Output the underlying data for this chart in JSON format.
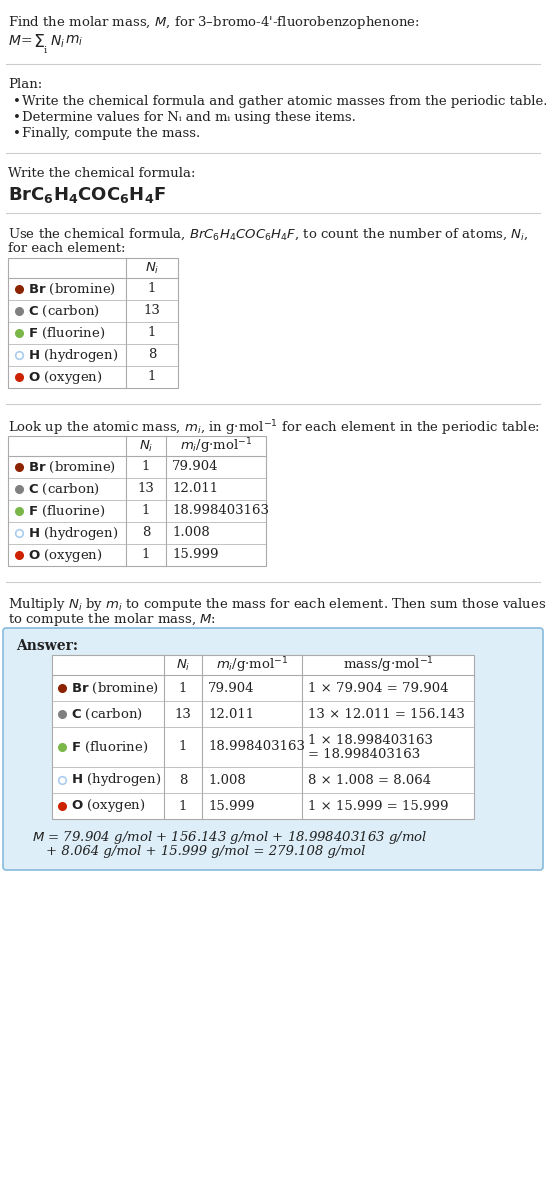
{
  "title_line": "Find the molar mass, M, for 3–bromo-4'-fluorobenzophenone:",
  "plan_header": "Plan:",
  "plan_bullets": [
    "Write the chemical formula and gather atomic masses from the periodic table.",
    "Determine values for Nᵢ and mᵢ using these items.",
    "Finally, compute the mass."
  ],
  "formula_header": "Write the chemical formula:",
  "elements": [
    {
      "symbol": "Br",
      "name": "bromine",
      "color": "#8b2200",
      "filled": true,
      "Ni": 1,
      "mi": "79.904",
      "mass_eq": "1 × 79.904 = 79.904"
    },
    {
      "symbol": "C",
      "name": "carbon",
      "color": "#808080",
      "filled": true,
      "Ni": 13,
      "mi": "12.011",
      "mass_eq": "13 × 12.011 = 156.143"
    },
    {
      "symbol": "F",
      "name": "fluorine",
      "color": "#7ab648",
      "filled": true,
      "Ni": 1,
      "mi": "18.998403163",
      "mass_eq": "1 × 18.998403163\n= 18.998403163"
    },
    {
      "symbol": "H",
      "name": "hydrogen",
      "color": "#aaccee",
      "filled": false,
      "Ni": 8,
      "mi": "1.008",
      "mass_eq": "8 × 1.008 = 8.064"
    },
    {
      "symbol": "O",
      "name": "oxygen",
      "color": "#cc2200",
      "filled": true,
      "Ni": 1,
      "mi": "15.999",
      "mass_eq": "1 × 15.999 = 15.999"
    }
  ],
  "final_eq_line1": "M = 79.904 g/mol + 156.143 g/mol + 18.998403163 g/mol",
  "final_eq_line2": "+ 8.064 g/mol + 15.999 g/mol = 279.108 g/mol",
  "bg_color": "#ffffff",
  "answer_bg": "#ddeef8",
  "answer_border": "#88bbdd",
  "separator_color": "#cccccc",
  "text_color": "#222222",
  "table_line_color": "#aaaaaa",
  "fontsize_main": 9.5
}
